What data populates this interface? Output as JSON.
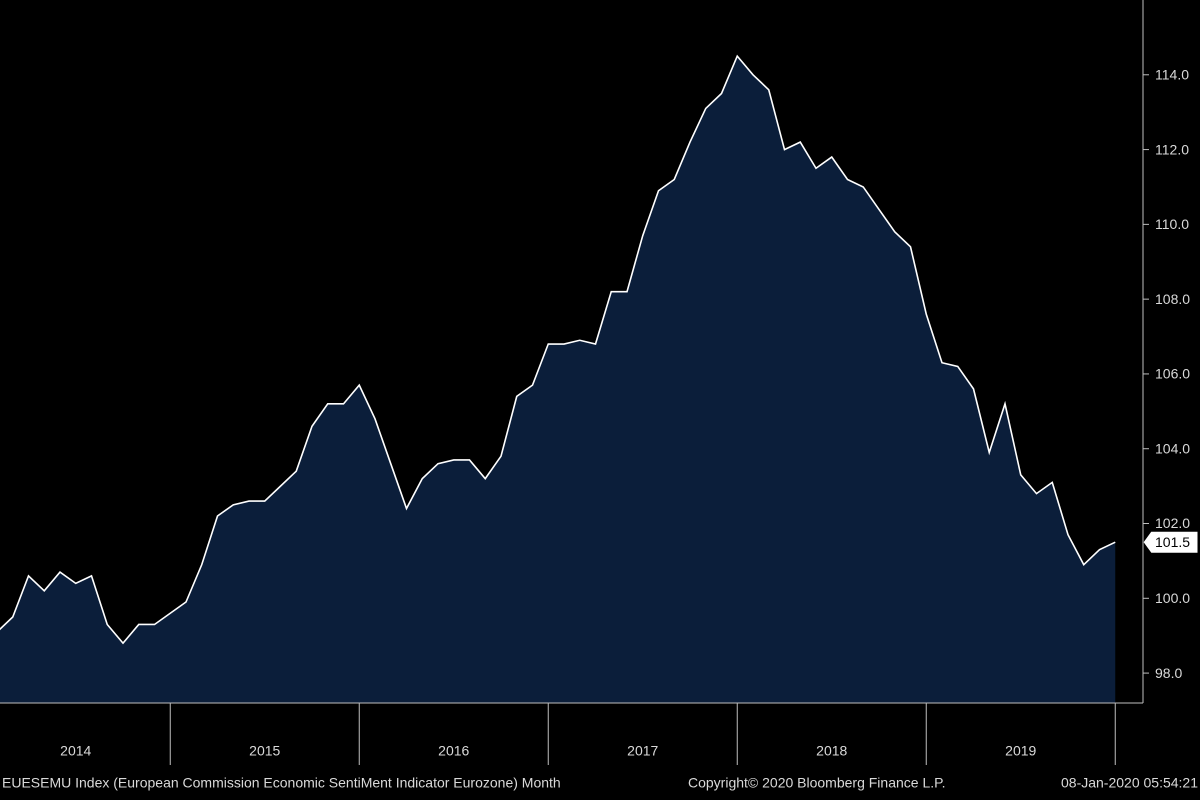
{
  "chart_data": {
    "type": "area",
    "categories": [
      null,
      null,
      null,
      null,
      null,
      null,
      null,
      null,
      null,
      null,
      null,
      null,
      null,
      null,
      null,
      null,
      null,
      null,
      null,
      null,
      null,
      null,
      null,
      null,
      null,
      null,
      null,
      null,
      null,
      null,
      null,
      null,
      null,
      null,
      null,
      null,
      null,
      null,
      null,
      null,
      null,
      null,
      null,
      null,
      null,
      null,
      null,
      null,
      null,
      null,
      null,
      null,
      null,
      null,
      null,
      null,
      null,
      null,
      null,
      null,
      null,
      null,
      null,
      null,
      null,
      null,
      null,
      null,
      null,
      null,
      null,
      null
    ],
    "xtick_labels": [
      "2014",
      "2015",
      "2016",
      "2017",
      "2018",
      "2019"
    ],
    "series": [
      {
        "name": "EUESEMU Index",
        "color": "#ffffff",
        "fill": "#0b1e3a",
        "values": [
          99.1,
          99.5,
          100.6,
          100.2,
          100.7,
          100.4,
          100.6,
          99.3,
          98.8,
          99.3,
          99.3,
          99.6,
          99.9,
          100.9,
          102.2,
          102.5,
          102.6,
          102.6,
          103.0,
          103.4,
          104.6,
          105.2,
          105.2,
          105.7,
          104.8,
          103.6,
          102.4,
          103.2,
          103.6,
          103.7,
          103.7,
          103.2,
          103.8,
          105.4,
          105.7,
          106.8,
          106.8,
          106.9,
          106.8,
          108.2,
          108.2,
          109.7,
          110.9,
          111.2,
          112.2,
          113.1,
          113.5,
          114.5,
          114.0,
          113.6,
          112.0,
          112.2,
          111.5,
          111.8,
          111.2,
          111.0,
          110.4,
          109.8,
          109.4,
          107.6,
          106.3,
          106.2,
          105.6,
          103.9,
          105.2,
          103.3,
          102.8,
          103.1,
          101.7,
          100.9,
          101.3,
          101.5
        ]
      }
    ],
    "ylim": [
      97.2,
      116.0
    ],
    "yticks": [
      {
        "value": 98,
        "label": "98.0"
      },
      {
        "value": 100,
        "label": "100.0"
      },
      {
        "value": 102,
        "label": "102.0"
      },
      {
        "value": 104,
        "label": "104.0"
      },
      {
        "value": 106,
        "label": "106.0"
      },
      {
        "value": 108,
        "label": "108.0"
      },
      {
        "value": 110,
        "label": "110.0"
      },
      {
        "value": 112,
        "label": "112.0"
      },
      {
        "value": 114,
        "label": "114.0"
      }
    ],
    "y_axis_side": "right",
    "footer": {
      "left": "EUESEMU Index (European Commission Economic SentiMent Indicator Eurozone)  Month",
      "center": "Copyright© 2020 Bloomberg Finance L.P.",
      "right": "08-Jan-2020 05:54:21"
    }
  }
}
